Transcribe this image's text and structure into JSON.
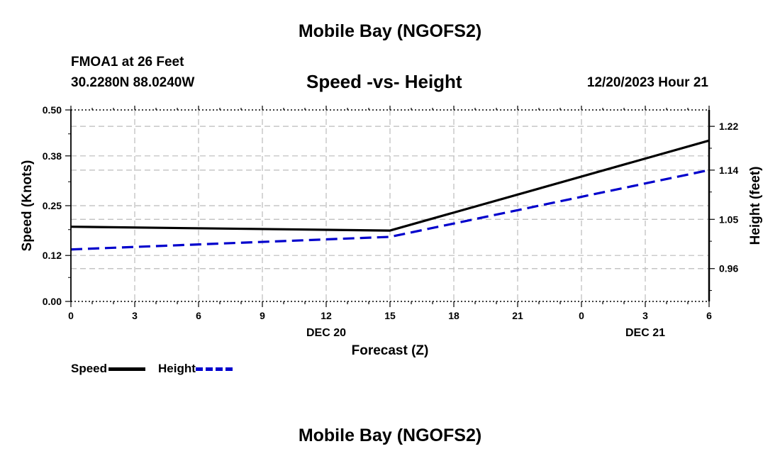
{
  "header": {
    "title": "Mobile Bay (NGOFS2)",
    "station": "FMOA1 at 26 Feet",
    "coords": "30.2280N  88.0240W",
    "chart_title": "Speed -vs- Height",
    "datetime": "12/20/2023 Hour 21"
  },
  "footer": {
    "title": "Mobile Bay (NGOFS2)"
  },
  "legend": [
    {
      "label": "Speed",
      "color": "#000000",
      "style": "solid"
    },
    {
      "label": "Height",
      "color": "#0000cc",
      "style": "dashed"
    }
  ],
  "chart_data": {
    "type": "line",
    "title": "Speed -vs- Height",
    "xlabel": "Forecast (Z)",
    "ylabel": "Speed (Knots)",
    "y2label": "Height (feet)",
    "x_ticks": [
      "0",
      "3",
      "6",
      "9",
      "12",
      "15",
      "18",
      "21",
      "0",
      "3",
      "6"
    ],
    "x_date_labels": [
      {
        "at_tick": 4,
        "label": "DEC 20"
      },
      {
        "at_tick": 9,
        "label": "DEC 21"
      }
    ],
    "ylim": [
      0.0,
      0.5
    ],
    "y_ticks": [
      "0.00",
      "0.12",
      "0.25",
      "0.38",
      "0.50"
    ],
    "y2_ticks": [
      "0.96",
      "1.05",
      "1.14",
      "1.22"
    ],
    "grid": true,
    "legend_position": "bottom-left",
    "series": [
      {
        "name": "Speed",
        "axis": "left",
        "color": "#000000",
        "points": [
          [
            0,
            0.195
          ],
          [
            15,
            0.185
          ],
          [
            30,
            0.42
          ]
        ]
      },
      {
        "name": "Height",
        "axis": "right",
        "color": "#0000cc",
        "points": [
          [
            0,
            0.995
          ],
          [
            15,
            1.018
          ],
          [
            30,
            1.14
          ]
        ]
      }
    ]
  }
}
